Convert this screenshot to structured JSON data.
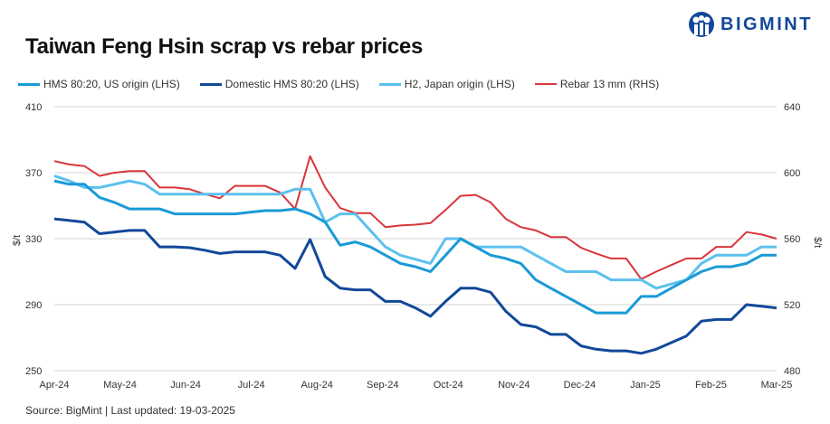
{
  "header": {
    "title": "Taiwan Feng Hsin scrap vs rebar prices",
    "logo_text": "BIGMINT"
  },
  "footer": {
    "source": "Source: BigMint |  Last updated: 19-03-2025"
  },
  "chart_data": {
    "type": "line",
    "title": "Taiwan Feng Hsin scrap vs rebar prices",
    "ylabel": "$/t",
    "y2label": "$/t",
    "ylim": [
      250,
      410
    ],
    "y2lim": [
      480,
      640
    ],
    "yticks": [
      "250",
      "290",
      "330",
      "370",
      "410"
    ],
    "y2ticks": [
      "480",
      "520",
      "560",
      "600",
      "640"
    ],
    "x_tick_labels": [
      "Apr-24",
      "May-24",
      "Jun-24",
      "Jul-24",
      "Aug-24",
      "Sep-24",
      "Oct-24",
      "Nov-24",
      "Dec-24",
      "Jan-25",
      "Feb-25",
      "Mar-25"
    ],
    "grid": true,
    "legend_position": "top",
    "series": [
      {
        "name": "HMS 80:20, US origin (LHS)",
        "axis": "left",
        "color": "#1a9ad6",
        "values": [
          365,
          363,
          363,
          355,
          352,
          348,
          348,
          348,
          345,
          345,
          345,
          345,
          345,
          346,
          347,
          347,
          348,
          345,
          340,
          326,
          328,
          325,
          320,
          315,
          313,
          310,
          320,
          330,
          325,
          320,
          318,
          315,
          305,
          300,
          295,
          290,
          285,
          285,
          285,
          295,
          295,
          300,
          305,
          310,
          313,
          313,
          315,
          320,
          320
        ]
      },
      {
        "name": "Domestic HMS 80:20 (LHS)",
        "axis": "left",
        "color": "#12489a",
        "values": [
          342,
          341,
          340,
          333,
          334,
          335,
          335,
          325,
          325,
          324.5,
          323,
          321,
          322,
          322,
          322,
          320,
          312,
          329.5,
          307,
          300,
          299,
          299,
          292,
          292,
          288,
          283,
          292,
          300,
          300,
          297.5,
          286,
          278,
          276.5,
          272,
          272,
          265,
          263,
          262,
          262,
          260.5,
          263,
          267,
          271,
          280,
          281,
          281,
          290,
          289,
          288
        ]
      },
      {
        "name": "H2, Japan origin (LHS)",
        "axis": "left",
        "color": "#5cc1ee",
        "values": [
          368,
          365,
          361,
          361,
          363,
          365,
          363,
          357,
          357,
          357,
          357,
          357,
          357,
          357,
          357,
          357,
          360,
          360,
          340,
          345,
          345,
          335,
          325,
          320,
          317.5,
          315,
          330,
          330,
          325,
          325,
          325,
          325,
          320,
          315,
          310,
          310,
          310,
          305,
          305,
          305,
          300,
          302.5,
          305,
          315,
          320,
          320,
          320,
          325,
          325
        ]
      },
      {
        "name": "Rebar 13 mm (RHS)",
        "axis": "right",
        "color": "#d9353b",
        "values": [
          607,
          605,
          604,
          598,
          600,
          601,
          601,
          591,
          591,
          590,
          587,
          584.5,
          592,
          592,
          592,
          588,
          578,
          610,
          591,
          578.5,
          575.5,
          575.5,
          567,
          568,
          568.5,
          569.5,
          577.5,
          586,
          586.5,
          582,
          572,
          567,
          565,
          561,
          561,
          554.5,
          551,
          548,
          548,
          535.5,
          540,
          544,
          548,
          548,
          555,
          555,
          564,
          562.5,
          560
        ]
      }
    ]
  }
}
